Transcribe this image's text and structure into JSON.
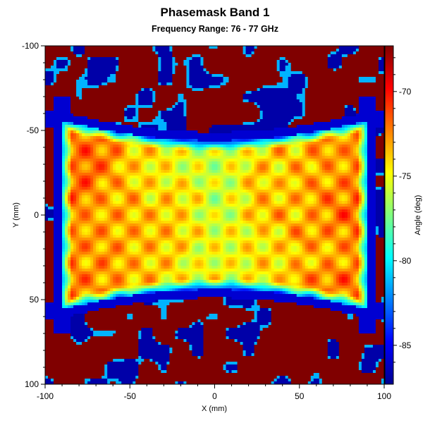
{
  "chart_data": {
    "type": "heatmap",
    "title": "Phasemask Band 1",
    "subtitle": "Frequency Range: 76 - 77 GHz",
    "xlabel": "X (mm)",
    "ylabel": "Y (mm)",
    "colorbar_label": "Angle (deg)",
    "xlim": [
      -100,
      100
    ],
    "ylim": [
      -100,
      100
    ],
    "y_axis_direction": "top-to-bottom increasing",
    "color_range": [
      -87.3,
      -67.3
    ],
    "colormap": "jet",
    "x_ticks": [
      -100,
      -50,
      0,
      50,
      100
    ],
    "x_tick_labels": [
      "-100",
      "-50",
      "0",
      "50",
      "100"
    ],
    "y_ticks": [
      -100,
      -50,
      0,
      50,
      100
    ],
    "y_tick_labels": [
      "-100",
      "-50",
      "0",
      "50",
      "100"
    ],
    "colorbar_ticks": [
      -70,
      -75,
      -80,
      -85
    ],
    "colorbar_tick_labels": [
      "-70",
      "-75",
      "-80",
      "-85"
    ],
    "grid": false,
    "colors": {
      "saturated_high": "#800000",
      "saturated_low": "#00008f"
    }
  }
}
